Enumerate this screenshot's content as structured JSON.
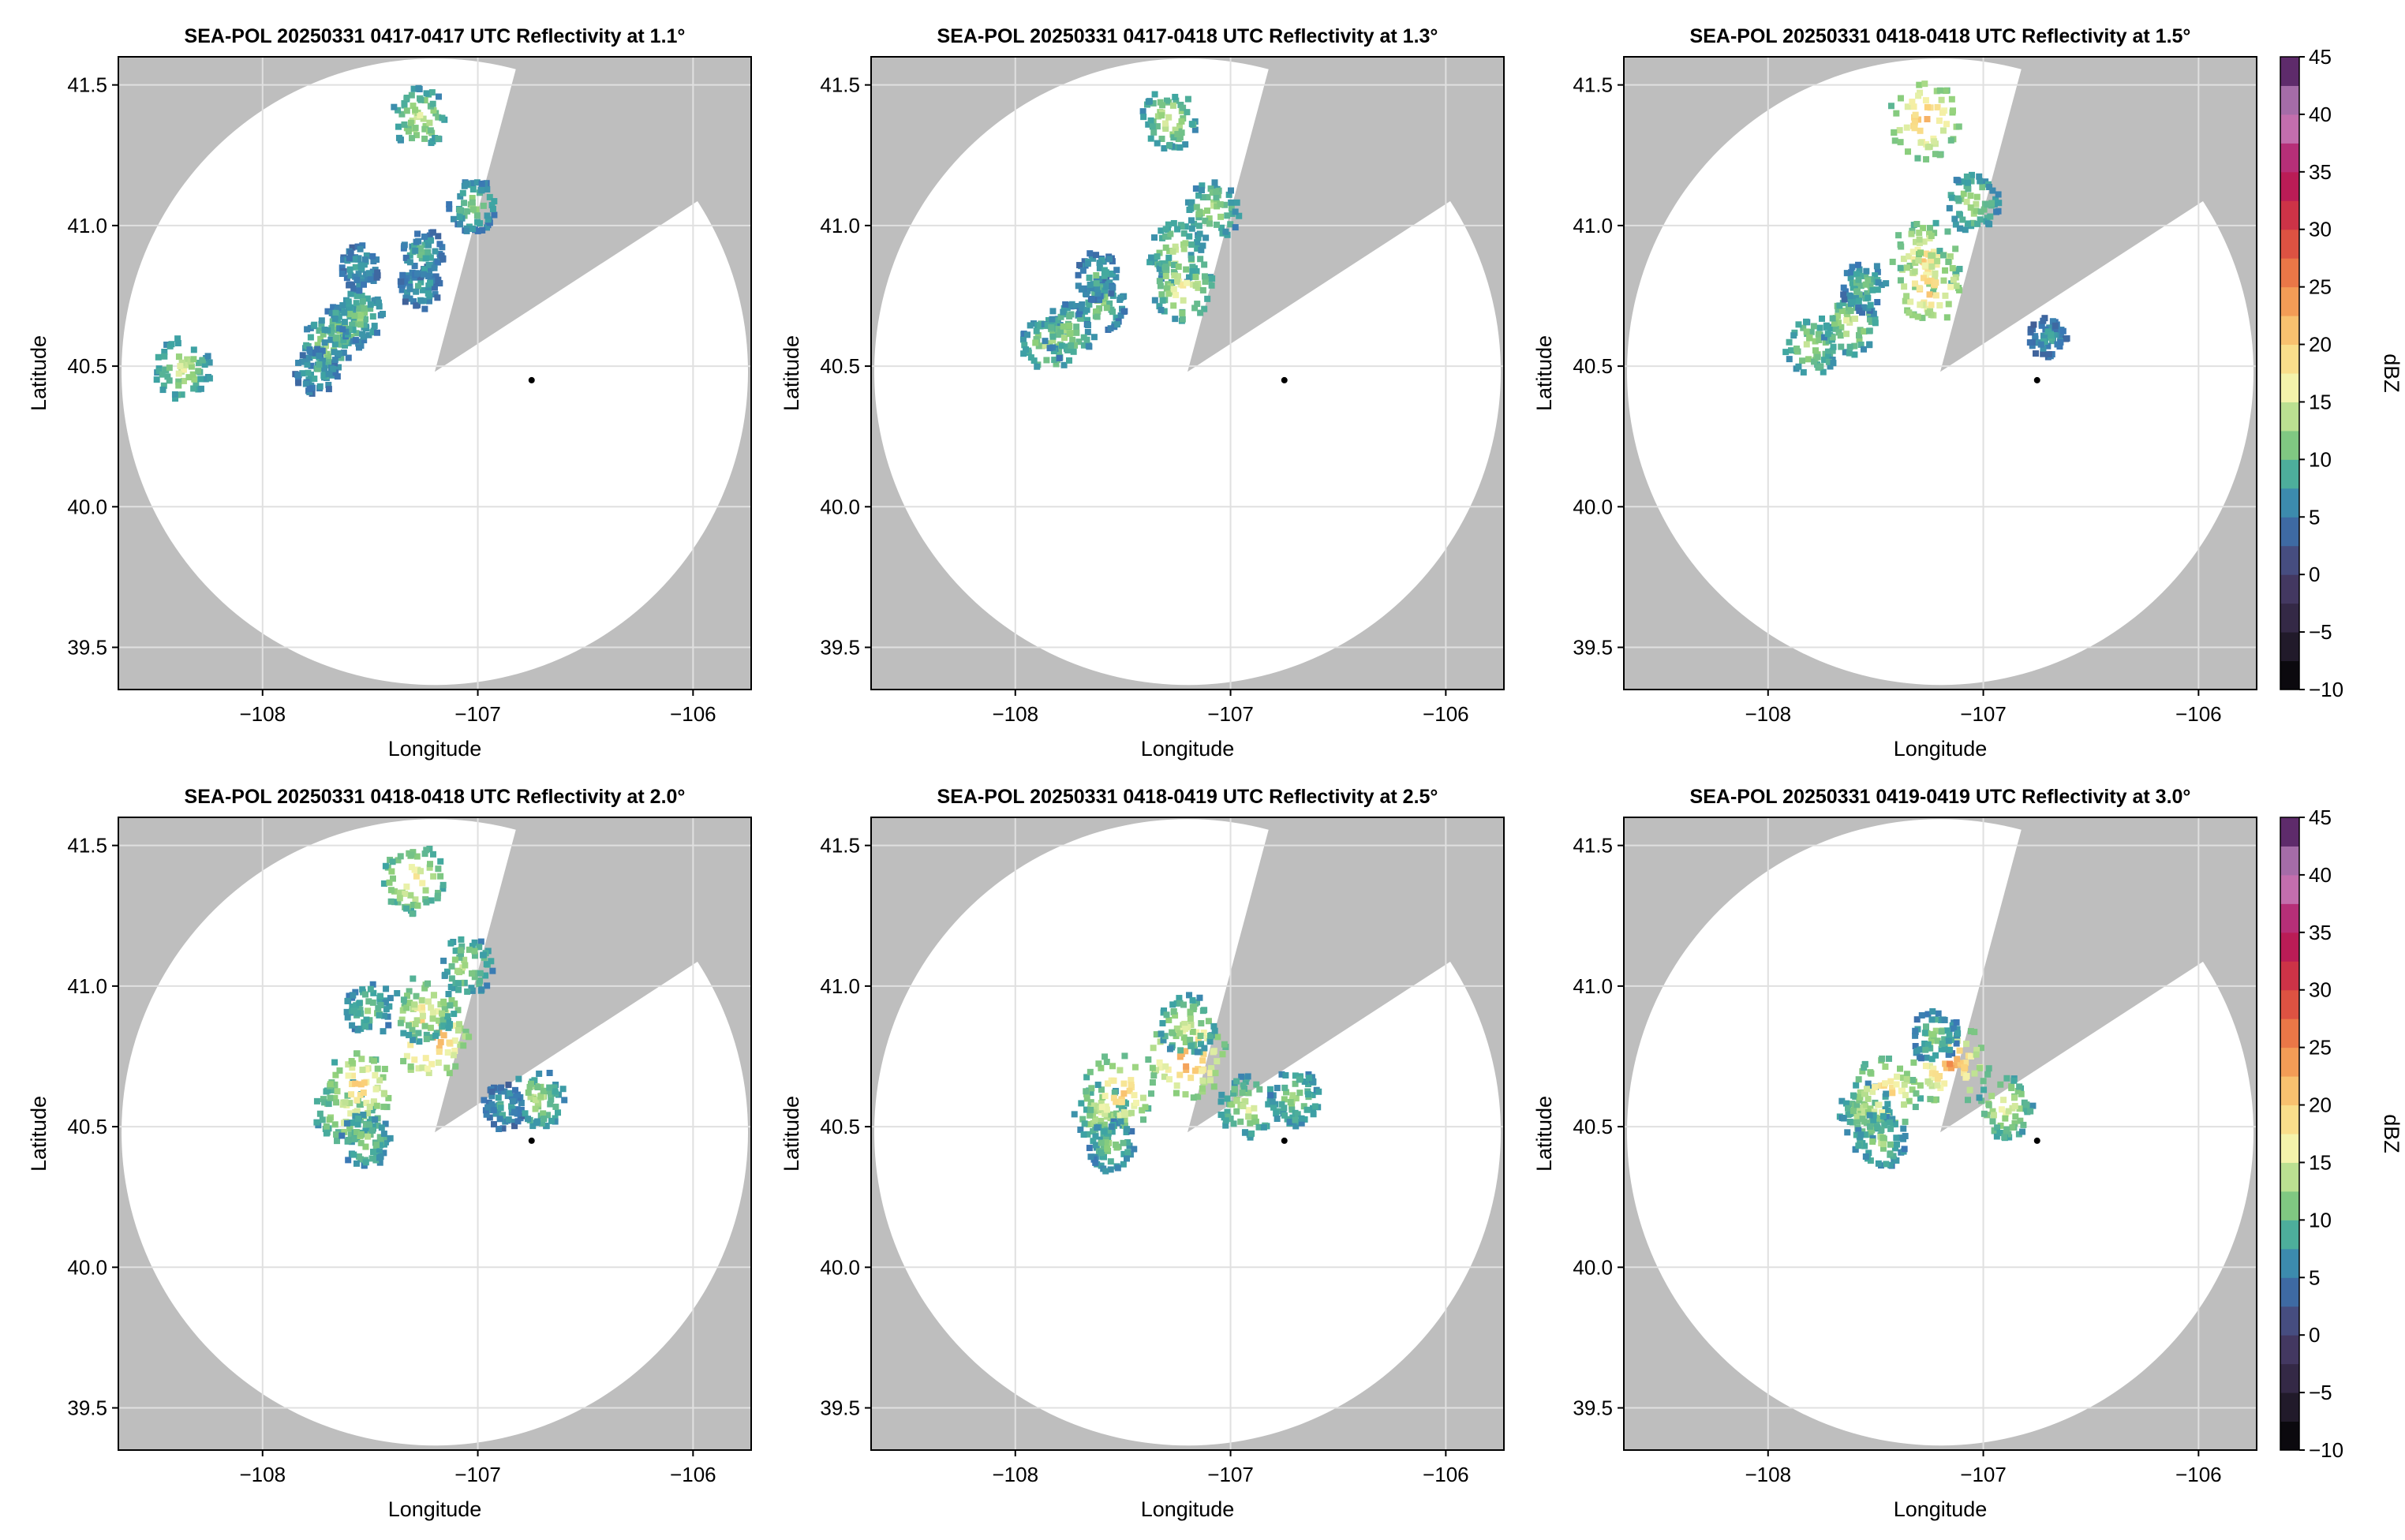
{
  "colors": {
    "outside_range": "#bebebe",
    "inside_range": "#ffffff",
    "grid": "#e0e0e0",
    "axis": "#000000",
    "radar_marker": "#000000"
  },
  "colorbar": {
    "label": "dBZ",
    "ticks": [
      45,
      40,
      35,
      30,
      25,
      20,
      15,
      10,
      5,
      0,
      -5,
      -10
    ],
    "tick_labels": [
      "45",
      "40",
      "35",
      "30",
      "25",
      "20",
      "15",
      "10",
      "5",
      "0",
      "−5",
      "−10"
    ],
    "range": [
      -10,
      45
    ],
    "colormap_stops": [
      {
        "value": -10,
        "color": "#000000"
      },
      {
        "value": -5,
        "color": "#2c2238"
      },
      {
        "value": 0,
        "color": "#4a3f6e"
      },
      {
        "value": 5,
        "color": "#3a78b5"
      },
      {
        "value": 8,
        "color": "#3ea6a2"
      },
      {
        "value": 12,
        "color": "#8fd07a"
      },
      {
        "value": 16,
        "color": "#f3f5ae"
      },
      {
        "value": 20,
        "color": "#fbd37b"
      },
      {
        "value": 25,
        "color": "#f08a4a"
      },
      {
        "value": 30,
        "color": "#d63f3f"
      },
      {
        "value": 35,
        "color": "#b0105e"
      },
      {
        "value": 40,
        "color": "#c98dc7"
      },
      {
        "value": 45,
        "color": "#3a0a4c"
      }
    ]
  },
  "chart_data": [
    {
      "type": "heatmap",
      "title": "SEA-POL 20250331 0417-0417 UTC Reflectivity at 1.1°",
      "xlabel": "Longitude",
      "ylabel": "Latitude",
      "x_ticks": [
        -108,
        -107,
        -106
      ],
      "x_tick_labels": [
        "−108",
        "−107",
        "−106"
      ],
      "y_ticks": [
        39.5,
        40.0,
        40.5,
        41.0,
        41.5
      ],
      "y_tick_labels": [
        "39.5",
        "40.0",
        "40.5",
        "41.0",
        "41.5"
      ],
      "xlim": [
        -108.67,
        -105.73
      ],
      "ylim": [
        39.35,
        41.6
      ],
      "grid": true,
      "radar_location": {
        "lon": -106.75,
        "lat": 40.45
      },
      "range_circle_center": {
        "lon": -107.2,
        "lat": 40.48
      },
      "echoes": [
        {
          "lon": -107.7,
          "lat": 40.58,
          "dbz": 13
        },
        {
          "lon": -107.62,
          "lat": 40.63,
          "dbz": 12
        },
        {
          "lon": -107.75,
          "lat": 40.48,
          "dbz": 10
        },
        {
          "lon": -107.55,
          "lat": 40.68,
          "dbz": 12
        },
        {
          "lon": -107.55,
          "lat": 40.85,
          "dbz": 9
        },
        {
          "lon": -107.27,
          "lat": 40.78,
          "dbz": 9
        },
        {
          "lon": -107.25,
          "lat": 40.9,
          "dbz": 10
        },
        {
          "lon": -107.02,
          "lat": 41.07,
          "dbz": 12
        },
        {
          "lon": -107.27,
          "lat": 41.38,
          "dbz": 15
        },
        {
          "lon": -108.37,
          "lat": 40.49,
          "dbz": 15
        }
      ]
    },
    {
      "type": "heatmap",
      "title": "SEA-POL 20250331 0417-0418 UTC Reflectivity at 1.3°",
      "xlabel": "Longitude",
      "ylabel": "Latitude",
      "x_ticks": [
        -108,
        -107,
        -106
      ],
      "x_tick_labels": [
        "−108",
        "−107",
        "−106"
      ],
      "y_ticks": [
        39.5,
        40.0,
        40.5,
        41.0,
        41.5
      ],
      "y_tick_labels": [
        "39.5",
        "40.0",
        "40.5",
        "41.0",
        "41.5"
      ],
      "xlim": [
        -108.67,
        -105.73
      ],
      "ylim": [
        39.35,
        41.6
      ],
      "grid": true,
      "radar_location": {
        "lon": -106.75,
        "lat": 40.45
      },
      "range_circle_center": {
        "lon": -107.2,
        "lat": 40.48
      },
      "echoes": [
        {
          "lon": -107.85,
          "lat": 40.57,
          "dbz": 14
        },
        {
          "lon": -107.75,
          "lat": 40.62,
          "dbz": 13
        },
        {
          "lon": -107.6,
          "lat": 40.72,
          "dbz": 12
        },
        {
          "lon": -107.62,
          "lat": 40.82,
          "dbz": 10
        },
        {
          "lon": -107.25,
          "lat": 40.9,
          "dbz": 15
        },
        {
          "lon": -107.22,
          "lat": 40.78,
          "dbz": 17
        },
        {
          "lon": -107.08,
          "lat": 41.05,
          "dbz": 14
        },
        {
          "lon": -107.28,
          "lat": 41.38,
          "dbz": 15
        }
      ]
    },
    {
      "type": "heatmap",
      "title": "SEA-POL 20250331 0418-0418 UTC Reflectivity at 1.5°",
      "xlabel": "Longitude",
      "ylabel": "Latitude",
      "x_ticks": [
        -108,
        -107,
        -106
      ],
      "x_tick_labels": [
        "−108",
        "−107",
        "−106"
      ],
      "y_ticks": [
        39.5,
        40.0,
        40.5,
        41.0,
        41.5
      ],
      "y_tick_labels": [
        "39.5",
        "40.0",
        "40.5",
        "41.0",
        "41.5"
      ],
      "xlim": [
        -108.67,
        -105.73
      ],
      "ylim": [
        39.35,
        41.6
      ],
      "grid": true,
      "radar_location": {
        "lon": -106.75,
        "lat": 40.45
      },
      "range_circle_center": {
        "lon": -107.2,
        "lat": 40.48
      },
      "echoes": [
        {
          "lon": -107.8,
          "lat": 40.57,
          "dbz": 14
        },
        {
          "lon": -107.62,
          "lat": 40.65,
          "dbz": 15
        },
        {
          "lon": -107.55,
          "lat": 40.78,
          "dbz": 11
        },
        {
          "lon": -107.27,
          "lat": 40.88,
          "dbz": 20
        },
        {
          "lon": -107.25,
          "lat": 40.78,
          "dbz": 21
        },
        {
          "lon": -107.05,
          "lat": 41.08,
          "dbz": 14
        },
        {
          "lon": -107.27,
          "lat": 41.38,
          "dbz": 22
        },
        {
          "lon": -106.7,
          "lat": 40.6,
          "dbz": 8
        }
      ]
    },
    {
      "type": "heatmap",
      "title": "SEA-POL 20250331 0418-0418 UTC Reflectivity at 2.0°",
      "xlabel": "Longitude",
      "ylabel": "Latitude",
      "x_ticks": [
        -108,
        -107,
        -106
      ],
      "x_tick_labels": [
        "−108",
        "−107",
        "−106"
      ],
      "y_ticks": [
        39.5,
        40.0,
        40.5,
        41.0,
        41.5
      ],
      "y_tick_labels": [
        "39.5",
        "40.0",
        "40.5",
        "41.0",
        "41.5"
      ],
      "xlim": [
        -108.67,
        -105.73
      ],
      "ylim": [
        39.35,
        41.6
      ],
      "grid": true,
      "radar_location": {
        "lon": -106.75,
        "lat": 40.45
      },
      "range_circle_center": {
        "lon": -107.2,
        "lat": 40.48
      },
      "echoes": [
        {
          "lon": -107.62,
          "lat": 40.55,
          "dbz": 16
        },
        {
          "lon": -107.55,
          "lat": 40.64,
          "dbz": 20
        },
        {
          "lon": -107.52,
          "lat": 40.45,
          "dbz": 13
        },
        {
          "lon": -107.22,
          "lat": 40.82,
          "dbz": 24
        },
        {
          "lon": -107.25,
          "lat": 40.92,
          "dbz": 17
        },
        {
          "lon": -107.5,
          "lat": 40.92,
          "dbz": 12
        },
        {
          "lon": -106.88,
          "lat": 40.57,
          "dbz": 9
        },
        {
          "lon": -106.72,
          "lat": 40.6,
          "dbz": 14
        },
        {
          "lon": -107.05,
          "lat": 41.07,
          "dbz": 14
        },
        {
          "lon": -107.3,
          "lat": 41.38,
          "dbz": 18
        }
      ]
    },
    {
      "type": "heatmap",
      "title": "SEA-POL 20250331 0418-0419 UTC Reflectivity at 2.5°",
      "xlabel": "Longitude",
      "ylabel": "Latitude",
      "x_ticks": [
        -108,
        -107,
        -106
      ],
      "x_tick_labels": [
        "−108",
        "−107",
        "−106"
      ],
      "y_ticks": [
        39.5,
        40.0,
        40.5,
        41.0,
        41.5
      ],
      "y_tick_labels": [
        "39.5",
        "40.0",
        "40.5",
        "41.0",
        "41.5"
      ],
      "xlim": [
        -108.67,
        -105.73
      ],
      "ylim": [
        39.35,
        41.6
      ],
      "grid": true,
      "radar_location": {
        "lon": -106.75,
        "lat": 40.45
      },
      "range_circle_center": {
        "lon": -107.2,
        "lat": 40.48
      },
      "echoes": [
        {
          "lon": -107.6,
          "lat": 40.55,
          "dbz": 15
        },
        {
          "lon": -107.52,
          "lat": 40.62,
          "dbz": 21
        },
        {
          "lon": -107.55,
          "lat": 40.43,
          "dbz": 12
        },
        {
          "lon": -107.2,
          "lat": 40.75,
          "dbz": 24
        },
        {
          "lon": -107.2,
          "lat": 40.86,
          "dbz": 15
        },
        {
          "lon": -106.92,
          "lat": 40.57,
          "dbz": 15
        },
        {
          "lon": -106.7,
          "lat": 40.6,
          "dbz": 13
        }
      ]
    },
    {
      "type": "heatmap",
      "title": "SEA-POL 20250331 0419-0419 UTC Reflectivity at 3.0°",
      "xlabel": "Longitude",
      "ylabel": "Latitude",
      "x_ticks": [
        -108,
        -107,
        -106
      ],
      "x_tick_labels": [
        "−108",
        "−107",
        "−106"
      ],
      "y_ticks": [
        39.5,
        40.0,
        40.5,
        41.0,
        41.5
      ],
      "y_tick_labels": [
        "39.5",
        "40.0",
        "40.5",
        "41.0",
        "41.5"
      ],
      "xlim": [
        -108.67,
        -105.73
      ],
      "ylim": [
        39.35,
        41.6
      ],
      "grid": true,
      "radar_location": {
        "lon": -106.75,
        "lat": 40.45
      },
      "range_circle_center": {
        "lon": -107.2,
        "lat": 40.48
      },
      "echoes": [
        {
          "lon": -107.55,
          "lat": 40.55,
          "dbz": 14
        },
        {
          "lon": -107.45,
          "lat": 40.62,
          "dbz": 20
        },
        {
          "lon": -107.48,
          "lat": 40.45,
          "dbz": 13
        },
        {
          "lon": -107.15,
          "lat": 40.72,
          "dbz": 23
        },
        {
          "lon": -107.22,
          "lat": 40.82,
          "dbz": 12
        },
        {
          "lon": -106.9,
          "lat": 40.57,
          "dbz": 16
        }
      ]
    }
  ]
}
